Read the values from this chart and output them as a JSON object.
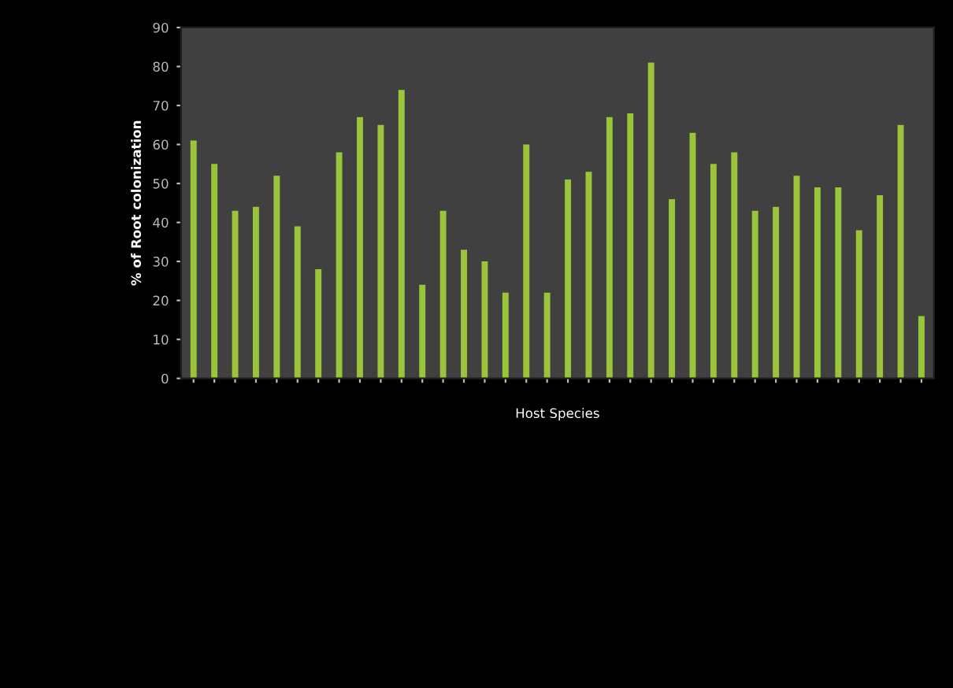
{
  "chart_data": {
    "type": "bar",
    "xlabel": "Host Species",
    "ylabel": "% of Root colonization",
    "categories": [
      null,
      null,
      null,
      null,
      null,
      null,
      null,
      null,
      null,
      null,
      null,
      null,
      null,
      null,
      null,
      null,
      null,
      null,
      null,
      null,
      null,
      null,
      null,
      null,
      null,
      null,
      null,
      null,
      null,
      null,
      null,
      null,
      null,
      null,
      null,
      null
    ],
    "values": [
      61,
      55,
      43,
      44,
      52,
      39,
      28,
      58,
      67,
      65,
      74,
      24,
      43,
      33,
      30,
      22,
      60,
      22,
      51,
      53,
      67,
      68,
      81,
      46,
      63,
      55,
      58,
      43,
      44,
      52,
      49,
      49,
      38,
      47,
      65,
      16
    ],
    "color": "#9ac43a",
    "ylim": [
      0,
      90
    ],
    "yticks": [
      0,
      10,
      20,
      30,
      40,
      50,
      60,
      70,
      80,
      90
    ],
    "grid": false
  }
}
